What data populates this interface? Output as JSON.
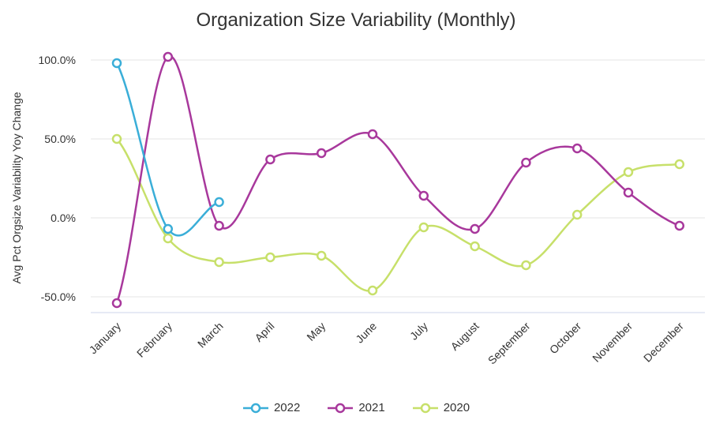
{
  "chart_data": {
    "type": "line",
    "title": "Organization Size Variability (Monthly)",
    "xlabel": "",
    "ylabel": "Avg Pct Orgsize Variability Yoy Change",
    "categories": [
      "January",
      "February",
      "March",
      "April",
      "May",
      "June",
      "July",
      "August",
      "September",
      "October",
      "November",
      "December"
    ],
    "ylim": [
      -0.6,
      1.07
    ],
    "yticks": [
      1.0,
      0.5,
      0.0,
      -0.5
    ],
    "ytick_labels": [
      "100.0%",
      "50.0%",
      "0.0%",
      "-50.0%"
    ],
    "grid": true,
    "legend_position": "bottom",
    "series": [
      {
        "name": "2022",
        "color": "#3aaed8",
        "values": [
          0.98,
          -0.07,
          0.1,
          null,
          null,
          null,
          null,
          null,
          null,
          null,
          null,
          null
        ]
      },
      {
        "name": "2021",
        "color": "#a8389c",
        "values": [
          -0.54,
          1.02,
          -0.05,
          0.37,
          0.41,
          0.53,
          0.14,
          -0.07,
          0.35,
          0.44,
          0.16,
          -0.05
        ]
      },
      {
        "name": "2020",
        "color": "#c7e06a",
        "values": [
          0.5,
          -0.13,
          -0.28,
          -0.25,
          -0.24,
          -0.46,
          -0.06,
          -0.18,
          -0.3,
          0.02,
          0.29,
          0.34
        ]
      }
    ]
  }
}
